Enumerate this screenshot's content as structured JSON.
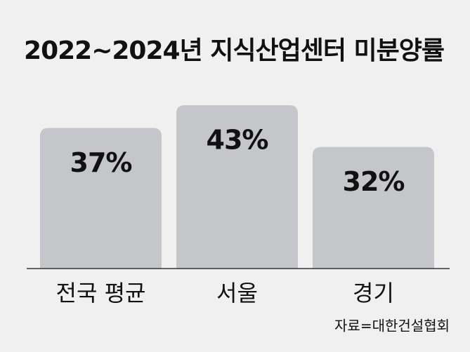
{
  "chart_data": {
    "type": "bar",
    "title": "2022~2024년 지식산업센터 미분양률",
    "categories": [
      "전국 평균",
      "서울",
      "경기"
    ],
    "values": [
      37,
      43,
      32
    ],
    "value_labels": [
      "37%",
      "43%",
      "32%"
    ],
    "color": "#c4c6c9",
    "source": "자료=대한건설협회"
  }
}
